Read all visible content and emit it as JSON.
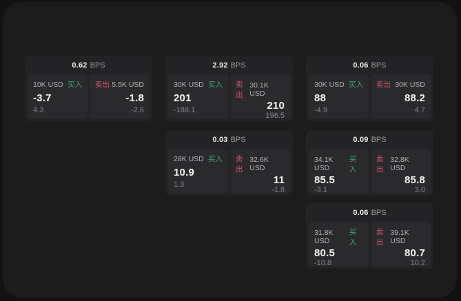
{
  "labels": {
    "buy": "买入",
    "sell": "卖出",
    "bps": "BPS"
  },
  "colors": {
    "buy": "#46a273",
    "sell": "#d5526e",
    "backdrop": "#121212",
    "page_bg": "#1c1c1d",
    "card_bg": "#232325",
    "panel_bg": "#2a2a2c"
  },
  "cards": [
    {
      "bps_value": "0.62",
      "buy": {
        "amount": "10K USD",
        "value": "-3.7",
        "delta": "4.3"
      },
      "sell": {
        "amount": "5.5K USD",
        "value": "-1.8",
        "delta": "-2.6"
      }
    },
    {
      "bps_value": "2.92",
      "buy": {
        "amount": "30K USD",
        "value": "201",
        "delta": "-188.1"
      },
      "sell": {
        "amount": "30.1K USD",
        "value": "210",
        "delta": "196.5"
      }
    },
    {
      "bps_value": "0.06",
      "buy": {
        "amount": "30K USD",
        "value": "88",
        "delta": "-4.9"
      },
      "sell": {
        "amount": "30K USD",
        "value": "88.2",
        "delta": "4.7"
      }
    },
    {
      "bps_value": "0.03",
      "buy": {
        "amount": "28K USD",
        "value": "10.9",
        "delta": "1.3"
      },
      "sell": {
        "amount": "32.6K USD",
        "value": "11",
        "delta": "-1.8"
      }
    },
    {
      "bps_value": "0.09",
      "buy": {
        "amount": "34.1K USD",
        "value": "85.5",
        "delta": "-3.1"
      },
      "sell": {
        "amount": "32.8K USD",
        "value": "85.8",
        "delta": "3.0"
      }
    },
    {
      "bps_value": "0.06",
      "buy": {
        "amount": "31.8K USD",
        "value": "80.5",
        "delta": "-10.8"
      },
      "sell": {
        "amount": "39.1K USD",
        "value": "80.7",
        "delta": "10.2"
      }
    }
  ]
}
